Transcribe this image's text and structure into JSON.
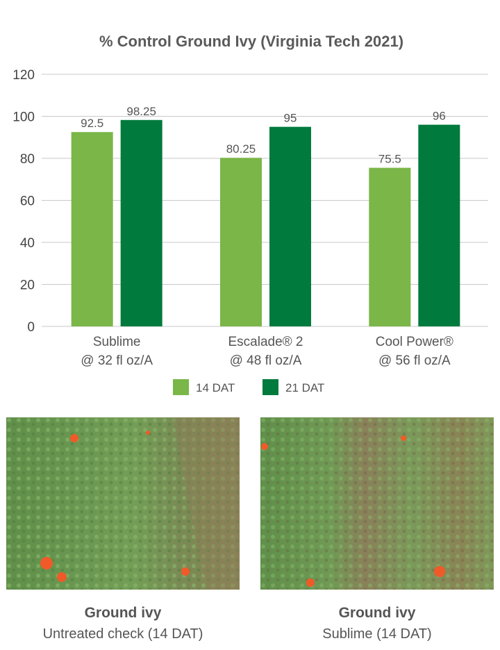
{
  "chart_data": {
    "type": "bar",
    "title": "% Control Ground Ivy (Virginia Tech 2021)",
    "categories": [
      [
        "Sublime",
        "@ 32 fl oz/A"
      ],
      [
        "Escalade® 2",
        "@ 48 fl oz/A"
      ],
      [
        "Cool Power®",
        "@ 56 fl oz/A"
      ]
    ],
    "series": [
      {
        "name": "14 DAT",
        "values": [
          92.5,
          80.25,
          75.5
        ],
        "labels": [
          "92.5",
          "80.25",
          "75.5"
        ],
        "color": "#7ab648"
      },
      {
        "name": "21 DAT",
        "values": [
          98.25,
          95,
          96
        ],
        "labels": [
          "98.25",
          "95",
          "96"
        ],
        "color": "#007a3d"
      }
    ],
    "ylim": [
      0,
      120
    ],
    "yticks": [
      "0",
      "20",
      "40",
      "60",
      "80",
      "100",
      "120"
    ],
    "grid": true,
    "legend_position": "bottom-center"
  },
  "photos": [
    {
      "title": "Ground ivy",
      "subtitle": "Untreated check (14 DAT)"
    },
    {
      "title": "Ground ivy",
      "subtitle": "Sublime (14 DAT)"
    }
  ]
}
